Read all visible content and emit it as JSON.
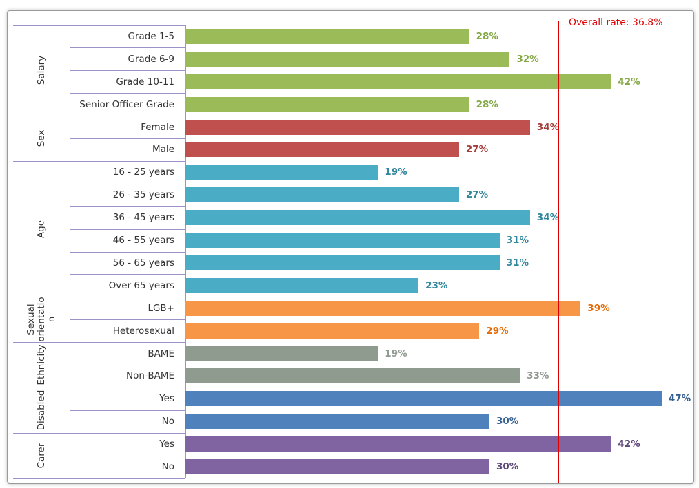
{
  "chart_data": {
    "type": "bar",
    "orientation": "horizontal",
    "reference_line": {
      "value": 36.8,
      "label": "Overall rate: 36.8%",
      "color": "#e00000"
    },
    "groups": [
      {
        "name": "Salary",
        "color": "#9bbb59",
        "label_color": "#84a845",
        "categories": [
          "Grade 1-5",
          "Grade 6-9",
          "Grade 10-11",
          "Senior Officer Grade"
        ],
        "values": [
          28,
          32,
          42,
          28
        ],
        "value_labels": [
          "28%",
          "32%",
          "42%",
          "28%"
        ]
      },
      {
        "name": "Sex",
        "color": "#c0504d",
        "label_color": "#a33d3a",
        "categories": [
          "Female",
          "Male"
        ],
        "values": [
          34,
          27
        ],
        "value_labels": [
          "34%",
          "27%"
        ]
      },
      {
        "name": "Age",
        "color": "#4bacc6",
        "label_color": "#31859c",
        "categories": [
          "16 - 25 years",
          "26 - 35 years",
          "36 - 45 years",
          "46 - 55 years",
          "56 - 65 years",
          "Over 65 years"
        ],
        "values": [
          19,
          27,
          34,
          31,
          31,
          23
        ],
        "value_labels": [
          "19%",
          "27%",
          "34%",
          "31%",
          "31%",
          "23%"
        ]
      },
      {
        "name": "Sexual orientation",
        "color": "#f79646",
        "label_color": "#e36c0a",
        "categories": [
          "LGB+",
          "Heterosexual"
        ],
        "values": [
          39,
          29
        ],
        "value_labels": [
          "39%",
          "29%"
        ]
      },
      {
        "name": "Ethnicity",
        "color": "#8e9b8e",
        "label_color": "#909a90",
        "categories": [
          "BAME",
          "Non-BAME"
        ],
        "values": [
          19,
          33
        ],
        "value_labels": [
          "19%",
          "33%"
        ]
      },
      {
        "name": "Disabled",
        "color": "#4f81bd",
        "label_color": "#376092",
        "categories": [
          "Yes",
          "No"
        ],
        "values": [
          47,
          30
        ],
        "value_labels": [
          "47%",
          "30%"
        ]
      },
      {
        "name": "Carer",
        "color": "#8064a2",
        "label_color": "#5f497a",
        "categories": [
          "Yes",
          "No"
        ],
        "values": [
          42,
          30
        ],
        "value_labels": [
          "42%",
          "30%"
        ]
      }
    ]
  }
}
